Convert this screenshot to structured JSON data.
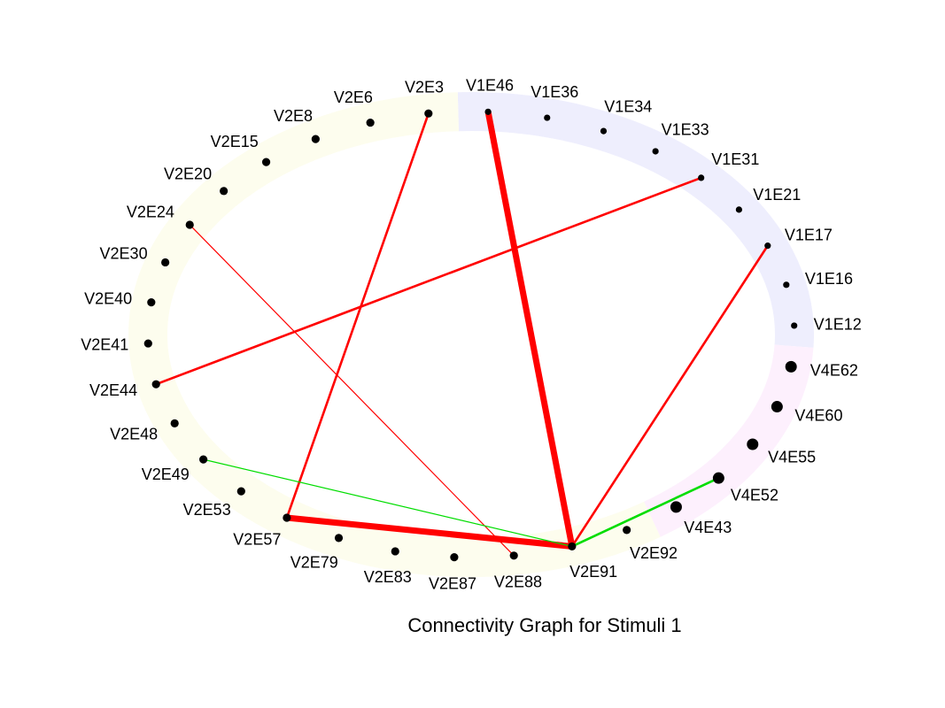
{
  "title": "Connectivity Graph for Stimuli 1",
  "groups": [
    {
      "name": "V2",
      "color": "#fdfdee"
    },
    {
      "name": "V1",
      "color": "#eeeefd"
    },
    {
      "name": "V4",
      "color": "#fdf0fd"
    }
  ],
  "nodes": [
    {
      "id": "V1E46",
      "label": "V1E46",
      "group": "V1"
    },
    {
      "id": "V1E36",
      "label": "V1E36",
      "group": "V1"
    },
    {
      "id": "V1E34",
      "label": "V1E34",
      "group": "V1"
    },
    {
      "id": "V1E33",
      "label": "V1E33",
      "group": "V1"
    },
    {
      "id": "V1E31",
      "label": "V1E31",
      "group": "V1"
    },
    {
      "id": "V1E21",
      "label": "V1E21",
      "group": "V1"
    },
    {
      "id": "V1E17",
      "label": "V1E17",
      "group": "V1"
    },
    {
      "id": "V1E16",
      "label": "V1E16",
      "group": "V1"
    },
    {
      "id": "V1E12",
      "label": "V1E12",
      "group": "V1"
    },
    {
      "id": "V4E62",
      "label": "V4E62",
      "group": "V4"
    },
    {
      "id": "V4E60",
      "label": "V4E60",
      "group": "V4"
    },
    {
      "id": "V4E55",
      "label": "V4E55",
      "group": "V4"
    },
    {
      "id": "V4E52",
      "label": "V4E52",
      "group": "V4"
    },
    {
      "id": "V4E43",
      "label": "V4E43",
      "group": "V4"
    },
    {
      "id": "V2E92",
      "label": "V2E92",
      "group": "V2"
    },
    {
      "id": "V2E91",
      "label": "V2E91",
      "group": "V2"
    },
    {
      "id": "V2E88",
      "label": "V2E88",
      "group": "V2"
    },
    {
      "id": "V2E87",
      "label": "V2E87",
      "group": "V2"
    },
    {
      "id": "V2E83",
      "label": "V2E83",
      "group": "V2"
    },
    {
      "id": "V2E79",
      "label": "V2E79",
      "group": "V2"
    },
    {
      "id": "V2E57",
      "label": "V2E57",
      "group": "V2"
    },
    {
      "id": "V2E53",
      "label": "V2E53",
      "group": "V2"
    },
    {
      "id": "V2E49",
      "label": "V2E49",
      "group": "V2"
    },
    {
      "id": "V2E48",
      "label": "V2E48",
      "group": "V2"
    },
    {
      "id": "V2E44",
      "label": "V2E44",
      "group": "V2"
    },
    {
      "id": "V2E41",
      "label": "V2E41",
      "group": "V2"
    },
    {
      "id": "V2E40",
      "label": "V2E40",
      "group": "V2"
    },
    {
      "id": "V2E30",
      "label": "V2E30",
      "group": "V2"
    },
    {
      "id": "V2E24",
      "label": "V2E24",
      "group": "V2"
    },
    {
      "id": "V2E20",
      "label": "V2E20",
      "group": "V2"
    },
    {
      "id": "V2E15",
      "label": "V2E15",
      "group": "V2"
    },
    {
      "id": "V2E8",
      "label": "V2E8",
      "group": "V2"
    },
    {
      "id": "V2E6",
      "label": "V2E6",
      "group": "V2"
    },
    {
      "id": "V2E3",
      "label": "V2E3",
      "group": "V2"
    }
  ],
  "edges": [
    {
      "source": "V1E46",
      "target": "V2E91",
      "color": "#ff0000",
      "weight": "strong"
    },
    {
      "source": "V2E57",
      "target": "V2E91",
      "color": "#ff0000",
      "weight": "strong"
    },
    {
      "source": "V1E17",
      "target": "V2E91",
      "color": "#ff0000",
      "weight": "medium"
    },
    {
      "source": "V2E3",
      "target": "V2E57",
      "color": "#ff0000",
      "weight": "medium"
    },
    {
      "source": "V1E31",
      "target": "V2E44",
      "color": "#ff0000",
      "weight": "medium"
    },
    {
      "source": "V2E24",
      "target": "V2E88",
      "color": "#ff0000",
      "weight": "weak"
    },
    {
      "source": "V2E49",
      "target": "V2E91",
      "color": "#00dd00",
      "weight": "weak"
    },
    {
      "source": "V4E52",
      "target": "V2E91",
      "color": "#00dd00",
      "weight": "medium"
    }
  ]
}
